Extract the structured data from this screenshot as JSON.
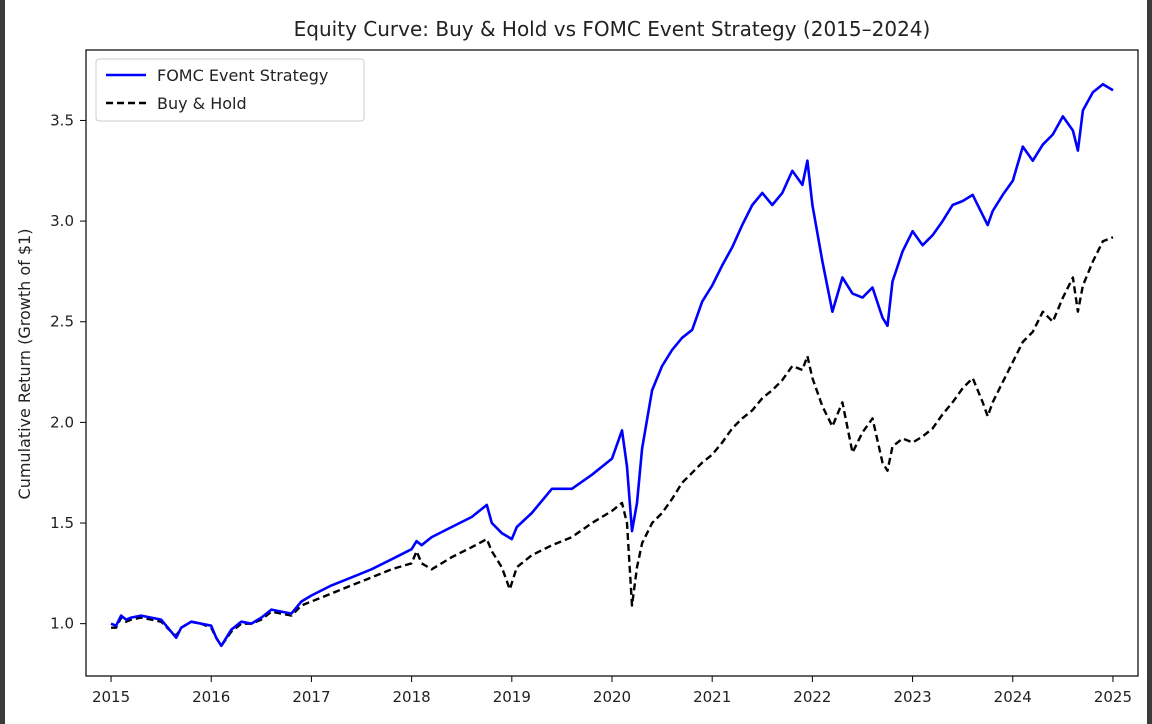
{
  "chart_data": {
    "type": "line",
    "title": "Equity Curve: Buy & Hold vs FOMC Event Strategy (2015–2024)",
    "xlabel": "",
    "ylabel": "Cumulative Return (Growth of $1)",
    "xlim": [
      2014.75,
      2025.25
    ],
    "ylim": [
      0.74,
      3.85
    ],
    "xticks": [
      2015,
      2016,
      2017,
      2018,
      2019,
      2020,
      2021,
      2022,
      2023,
      2024,
      2025
    ],
    "xtick_labels": [
      "2015",
      "2016",
      "2017",
      "2018",
      "2019",
      "2020",
      "2021",
      "2022",
      "2023",
      "2024",
      "2025"
    ],
    "yticks": [
      1.0,
      1.5,
      2.0,
      2.5,
      3.0,
      3.5
    ],
    "ytick_labels": [
      "1.0",
      "1.5",
      "2.0",
      "2.5",
      "3.0",
      "3.5"
    ],
    "grid": false,
    "legend_position": "top-left",
    "series": [
      {
        "name": "FOMC Event Strategy",
        "color": "#0000ff",
        "style": "solid",
        "x": [
          2015.0,
          2015.05,
          2015.1,
          2015.15,
          2015.2,
          2015.3,
          2015.4,
          2015.5,
          2015.6,
          2015.65,
          2015.7,
          2015.8,
          2015.9,
          2016.0,
          2016.05,
          2016.1,
          2016.2,
          2016.3,
          2016.4,
          2016.5,
          2016.6,
          2016.7,
          2016.8,
          2016.9,
          2017.0,
          2017.2,
          2017.4,
          2017.6,
          2017.8,
          2018.0,
          2018.05,
          2018.1,
          2018.2,
          2018.4,
          2018.6,
          2018.75,
          2018.8,
          2018.9,
          2019.0,
          2019.05,
          2019.2,
          2019.4,
          2019.6,
          2019.8,
          2020.0,
          2020.1,
          2020.15,
          2020.2,
          2020.25,
          2020.3,
          2020.4,
          2020.5,
          2020.6,
          2020.7,
          2020.8,
          2020.9,
          2021.0,
          2021.1,
          2021.2,
          2021.3,
          2021.4,
          2021.5,
          2021.6,
          2021.7,
          2021.8,
          2021.9,
          2021.95,
          2022.0,
          2022.1,
          2022.2,
          2022.3,
          2022.4,
          2022.5,
          2022.6,
          2022.7,
          2022.75,
          2022.8,
          2022.9,
          2023.0,
          2023.1,
          2023.2,
          2023.3,
          2023.4,
          2023.5,
          2023.6,
          2023.7,
          2023.75,
          2023.8,
          2023.9,
          2024.0,
          2024.1,
          2024.2,
          2024.3,
          2024.4,
          2024.5,
          2024.6,
          2024.65,
          2024.7,
          2024.8,
          2024.9,
          2025.0
        ],
        "y": [
          1.0,
          0.99,
          1.04,
          1.02,
          1.03,
          1.04,
          1.03,
          1.02,
          0.96,
          0.93,
          0.98,
          1.01,
          1.0,
          0.99,
          0.93,
          0.89,
          0.97,
          1.01,
          1.0,
          1.03,
          1.07,
          1.06,
          1.05,
          1.11,
          1.14,
          1.19,
          1.23,
          1.27,
          1.32,
          1.37,
          1.41,
          1.39,
          1.43,
          1.48,
          1.53,
          1.59,
          1.5,
          1.45,
          1.42,
          1.48,
          1.55,
          1.67,
          1.67,
          1.74,
          1.82,
          1.96,
          1.78,
          1.46,
          1.6,
          1.87,
          2.16,
          2.28,
          2.36,
          2.42,
          2.46,
          2.6,
          2.68,
          2.78,
          2.87,
          2.98,
          3.08,
          3.14,
          3.08,
          3.14,
          3.25,
          3.18,
          3.3,
          3.08,
          2.8,
          2.55,
          2.72,
          2.64,
          2.62,
          2.67,
          2.52,
          2.48,
          2.7,
          2.85,
          2.95,
          2.88,
          2.93,
          3.0,
          3.08,
          3.1,
          3.13,
          3.03,
          2.98,
          3.05,
          3.13,
          3.2,
          3.37,
          3.3,
          3.38,
          3.43,
          3.52,
          3.45,
          3.35,
          3.55,
          3.64,
          3.68,
          3.65
        ]
      },
      {
        "name": "Buy & Hold",
        "color": "#000000",
        "style": "dashed",
        "x": [
          2015.0,
          2015.05,
          2015.1,
          2015.15,
          2015.2,
          2015.3,
          2015.4,
          2015.5,
          2015.6,
          2015.65,
          2015.7,
          2015.8,
          2015.9,
          2016.0,
          2016.05,
          2016.1,
          2016.2,
          2016.3,
          2016.4,
          2016.5,
          2016.6,
          2016.7,
          2016.8,
          2016.9,
          2017.0,
          2017.2,
          2017.4,
          2017.6,
          2017.8,
          2018.0,
          2018.05,
          2018.1,
          2018.2,
          2018.4,
          2018.6,
          2018.75,
          2018.8,
          2018.9,
          2018.98,
          2019.05,
          2019.2,
          2019.4,
          2019.6,
          2019.8,
          2020.0,
          2020.1,
          2020.15,
          2020.2,
          2020.25,
          2020.3,
          2020.4,
          2020.5,
          2020.6,
          2020.7,
          2020.8,
          2020.9,
          2021.0,
          2021.1,
          2021.2,
          2021.3,
          2021.4,
          2021.5,
          2021.6,
          2021.7,
          2021.8,
          2021.9,
          2021.95,
          2022.0,
          2022.1,
          2022.2,
          2022.3,
          2022.4,
          2022.5,
          2022.6,
          2022.7,
          2022.75,
          2022.8,
          2022.9,
          2023.0,
          2023.1,
          2023.2,
          2023.3,
          2023.4,
          2023.5,
          2023.6,
          2023.7,
          2023.75,
          2023.8,
          2023.9,
          2024.0,
          2024.1,
          2024.2,
          2024.3,
          2024.4,
          2024.5,
          2024.6,
          2024.65,
          2024.7,
          2024.8,
          2024.9,
          2025.0
        ],
        "y": [
          0.98,
          0.98,
          1.03,
          1.01,
          1.02,
          1.03,
          1.02,
          1.01,
          0.96,
          0.94,
          0.98,
          1.01,
          1.0,
          0.98,
          0.93,
          0.89,
          0.96,
          1.0,
          1.0,
          1.02,
          1.06,
          1.05,
          1.04,
          1.09,
          1.11,
          1.15,
          1.19,
          1.23,
          1.27,
          1.3,
          1.36,
          1.3,
          1.27,
          1.33,
          1.38,
          1.42,
          1.36,
          1.28,
          1.17,
          1.28,
          1.34,
          1.39,
          1.43,
          1.5,
          1.56,
          1.6,
          1.5,
          1.09,
          1.28,
          1.4,
          1.5,
          1.55,
          1.62,
          1.7,
          1.75,
          1.8,
          1.84,
          1.9,
          1.97,
          2.02,
          2.06,
          2.12,
          2.16,
          2.21,
          2.28,
          2.26,
          2.33,
          2.22,
          2.08,
          1.98,
          2.1,
          1.85,
          1.95,
          2.02,
          1.8,
          1.76,
          1.88,
          1.92,
          1.9,
          1.93,
          1.97,
          2.04,
          2.1,
          2.17,
          2.22,
          2.1,
          2.03,
          2.1,
          2.2,
          2.3,
          2.4,
          2.45,
          2.55,
          2.5,
          2.62,
          2.72,
          2.55,
          2.68,
          2.8,
          2.9,
          2.92
        ]
      }
    ]
  }
}
